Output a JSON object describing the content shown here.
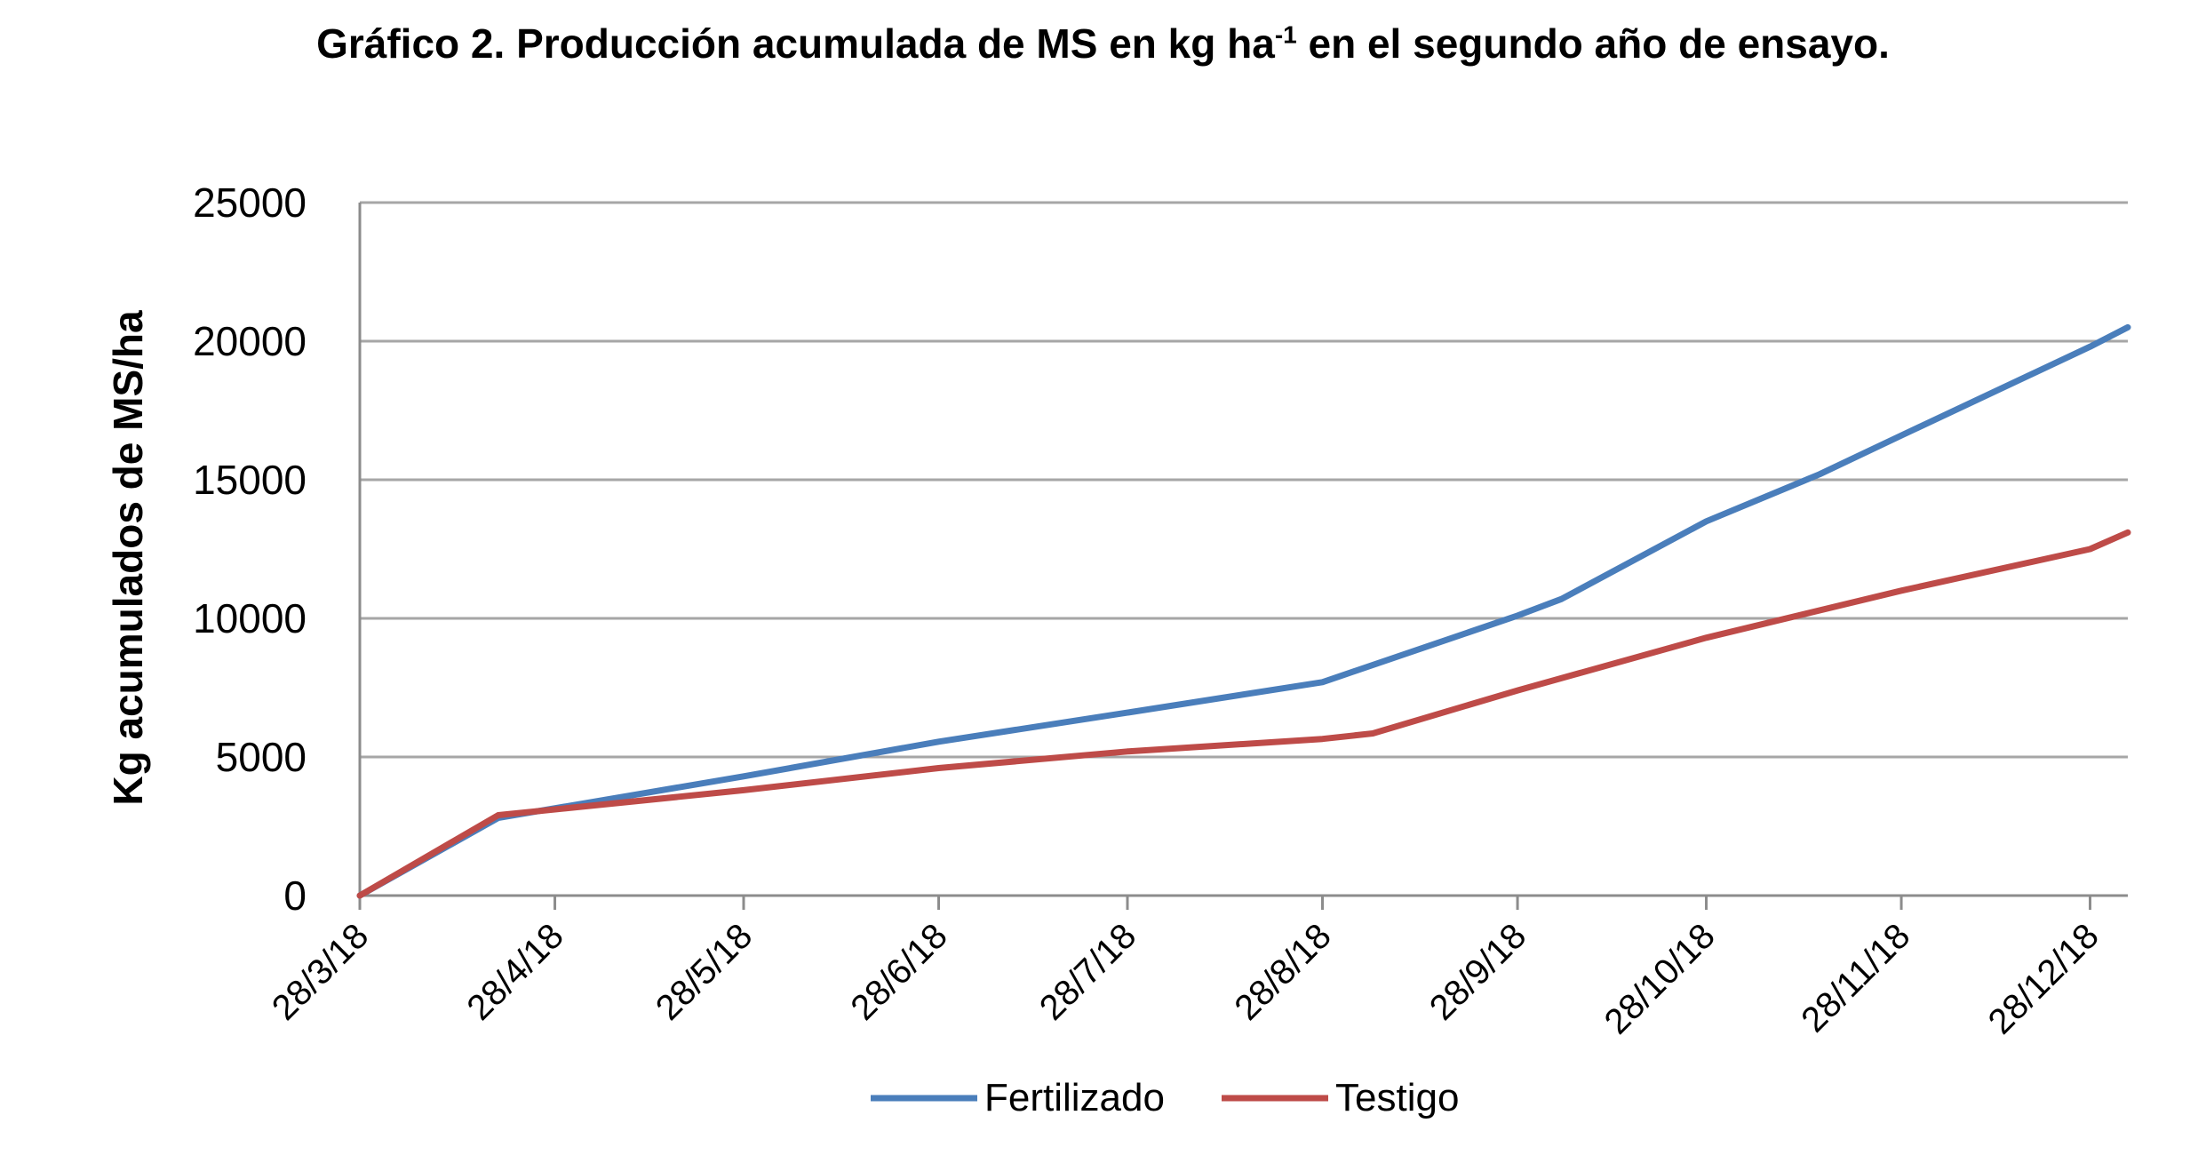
{
  "chart_data": {
    "type": "line",
    "title_main": "Gráfico 2. Producción acumulada de MS en kg ha",
    "title_sup": "-1",
    "title_end": " en el segundo año de ensayo.",
    "xlabel": "",
    "ylabel": "Kg acumulados de MS/ha",
    "ylim": [
      0,
      25000
    ],
    "yticks": [
      "0",
      "5000",
      "10000",
      "15000",
      "20000",
      "25000"
    ],
    "xticks": [
      "28/3/18",
      "28/4/18",
      "28/5/18",
      "28/6/18",
      "28/7/18",
      "28/8/18",
      "28/9/18",
      "28/10/18",
      "28/11/18",
      "28/12/18"
    ],
    "xlim": [
      "2018-03-28",
      "2019-01-03"
    ],
    "grid": true,
    "legend_position": "bottom",
    "series": [
      {
        "name": "Fertilizado",
        "color": "#4A7EBB",
        "points": [
          [
            "2018-03-28",
            0
          ],
          [
            "2018-04-19",
            2800
          ],
          [
            "2018-05-28",
            4300
          ],
          [
            "2018-06-28",
            5550
          ],
          [
            "2018-07-28",
            6600
          ],
          [
            "2018-08-28",
            7700
          ],
          [
            "2018-09-28",
            10100
          ],
          [
            "2018-10-05",
            10700
          ],
          [
            "2018-10-28",
            13500
          ],
          [
            "2018-11-15",
            15200
          ],
          [
            "2018-11-28",
            16600
          ],
          [
            "2018-12-28",
            19800
          ],
          [
            "2019-01-03",
            20500
          ]
        ]
      },
      {
        "name": "Testigo",
        "color": "#BE4B48",
        "points": [
          [
            "2018-03-28",
            0
          ],
          [
            "2018-04-19",
            2900
          ],
          [
            "2018-05-28",
            3800
          ],
          [
            "2018-06-28",
            4600
          ],
          [
            "2018-07-28",
            5200
          ],
          [
            "2018-08-28",
            5650
          ],
          [
            "2018-09-05",
            5850
          ],
          [
            "2018-09-28",
            7400
          ],
          [
            "2018-10-28",
            9300
          ],
          [
            "2018-11-28",
            11000
          ],
          [
            "2018-12-28",
            12500
          ],
          [
            "2019-01-03",
            13100
          ]
        ]
      }
    ]
  }
}
